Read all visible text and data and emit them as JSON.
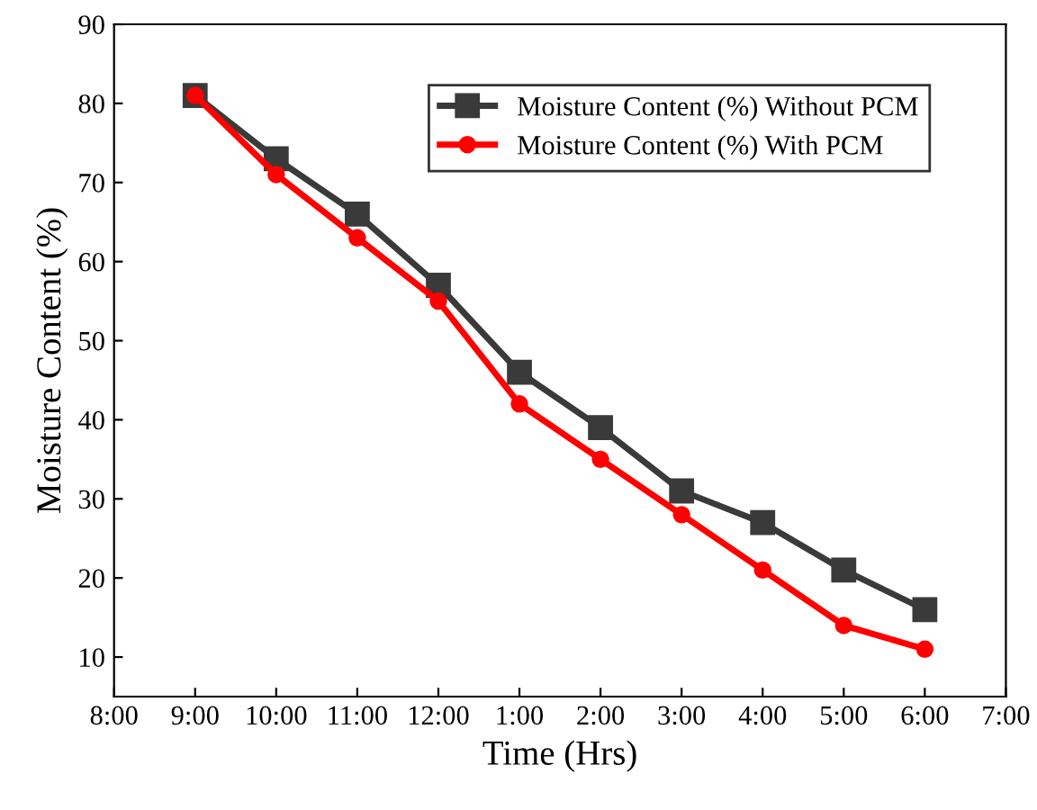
{
  "chart_data": {
    "type": "line",
    "xlabel": "Time (Hrs)",
    "ylabel": "Moisture Content (%)",
    "categories": [
      "8:00",
      "9:00",
      "10:00",
      "11:00",
      "12:00",
      "1:00",
      "2:00",
      "3:00",
      "4:00",
      "5:00",
      "6:00",
      "7:00"
    ],
    "series": [
      {
        "name": "Moisture Content (%) Without PCM",
        "color": "#3a3a3a",
        "marker": "square",
        "values": [
          null,
          81,
          73,
          66,
          57,
          46,
          39,
          31,
          27,
          21,
          16,
          null
        ]
      },
      {
        "name": "Moisture Content (%) With PCM",
        "color": "#ff0000",
        "marker": "circle",
        "values": [
          null,
          81,
          71,
          63,
          55,
          42,
          35,
          28,
          21,
          14,
          11,
          null
        ]
      }
    ],
    "ylim": [
      5,
      90
    ],
    "yticks": [
      10,
      20,
      30,
      40,
      50,
      60,
      70,
      80,
      90
    ],
    "grid": false,
    "legend": "top right",
    "line_style": "solid"
  }
}
